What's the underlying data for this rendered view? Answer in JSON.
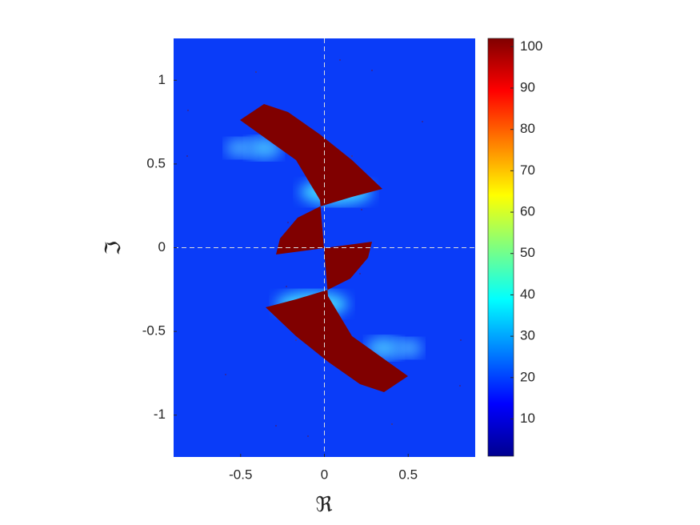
{
  "chart_data": {
    "type": "heatmap",
    "xlabel": "ℜ",
    "ylabel": "ℑ",
    "xlim": [
      -0.9,
      0.9
    ],
    "ylim": [
      -1.25,
      1.25
    ],
    "xticks": [
      -0.5,
      0,
      0.5
    ],
    "yticks": [
      -1,
      -0.5,
      0,
      0.5,
      1
    ],
    "colormap": "jet",
    "clim": [
      1,
      102
    ],
    "colorbar_ticks": [
      10,
      20,
      30,
      40,
      50,
      60,
      70,
      80,
      90,
      100
    ],
    "zero_lines": true
  }
}
